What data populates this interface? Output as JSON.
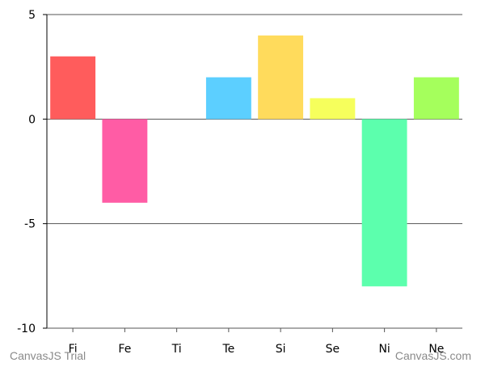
{
  "chart_data": {
    "type": "bar",
    "categories": [
      "Fi",
      "Fe",
      "Ti",
      "Te",
      "Si",
      "Se",
      "Ni",
      "Ne"
    ],
    "values": [
      3,
      -4,
      0,
      2,
      4,
      1,
      -8,
      2
    ],
    "colors": [
      "#ff5c5c",
      "#ff5ca5",
      "#ffffff",
      "#5ccfff",
      "#ffdb5c",
      "#f6ff5c",
      "#5cffad",
      "#a5ff5c"
    ],
    "ylim": [
      -10,
      5
    ],
    "yticks": [
      5,
      0,
      -5,
      -10
    ],
    "grid": true,
    "title": "",
    "xlabel": "",
    "ylabel": ""
  },
  "watermarks": {
    "left": "CanvasJS Trial",
    "right": "CanvasJS.com"
  }
}
